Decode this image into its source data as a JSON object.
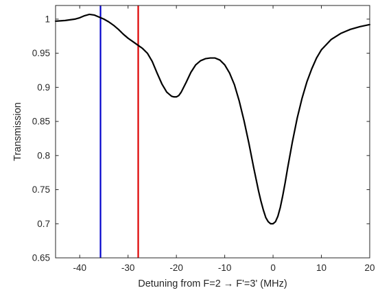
{
  "chart_data": {
    "type": "line",
    "title": "",
    "xlabel": "Detuning from F=2 → F'=3' (MHz)",
    "ylabel": "Transmission",
    "xlim": [
      -45,
      20
    ],
    "ylim": [
      0.65,
      1.02
    ],
    "grid": false,
    "legend": "none",
    "x_ticks": [
      -40,
      -30,
      -20,
      -10,
      0,
      10,
      20
    ],
    "x_tick_labels": [
      "-40",
      "-30",
      "-20",
      "-10",
      "0",
      "10",
      "20"
    ],
    "y_ticks": [
      0.65,
      0.7,
      0.75,
      0.8,
      0.85,
      0.9,
      0.95,
      1.0
    ],
    "y_tick_labels": [
      "0.65",
      "0.7",
      "0.75",
      "0.8",
      "0.85",
      "0.9",
      "0.95",
      "1"
    ],
    "series": [
      {
        "color": "#000000",
        "x": [
          -45,
          -43,
          -41,
          -40,
          -39,
          -38,
          -37,
          -36,
          -35,
          -34,
          -33,
          -32,
          -31,
          -30,
          -29,
          -28,
          -27,
          -26,
          -25,
          -24,
          -23,
          -22,
          -21,
          -20.5,
          -20,
          -19.5,
          -19,
          -18,
          -17,
          -16,
          -15,
          -14,
          -13,
          -12,
          -11,
          -10,
          -9,
          -8,
          -7,
          -6,
          -5,
          -4,
          -3,
          -2.5,
          -2,
          -1.5,
          -1,
          -0.5,
          0,
          0.5,
          1,
          1.5,
          2,
          2.5,
          3,
          4,
          5,
          6,
          7,
          8,
          9,
          10,
          12,
          14,
          16,
          18,
          20
        ],
        "y": [
          0.997,
          0.998,
          1.0,
          1.002,
          1.005,
          1.007,
          1.006,
          1.003,
          1.0,
          0.996,
          0.991,
          0.985,
          0.978,
          0.972,
          0.967,
          0.962,
          0.957,
          0.95,
          0.938,
          0.921,
          0.905,
          0.893,
          0.887,
          0.886,
          0.886,
          0.888,
          0.893,
          0.907,
          0.922,
          0.933,
          0.939,
          0.942,
          0.943,
          0.943,
          0.94,
          0.933,
          0.921,
          0.904,
          0.88,
          0.851,
          0.818,
          0.782,
          0.748,
          0.733,
          0.72,
          0.709,
          0.703,
          0.7,
          0.7,
          0.703,
          0.711,
          0.724,
          0.741,
          0.76,
          0.781,
          0.82,
          0.855,
          0.884,
          0.908,
          0.927,
          0.943,
          0.955,
          0.97,
          0.979,
          0.985,
          0.989,
          0.992
        ]
      }
    ],
    "vertical_lines": [
      {
        "x": -35.7,
        "color": "#0000cc"
      },
      {
        "x": -27.9,
        "color": "#dd0000"
      }
    ]
  }
}
